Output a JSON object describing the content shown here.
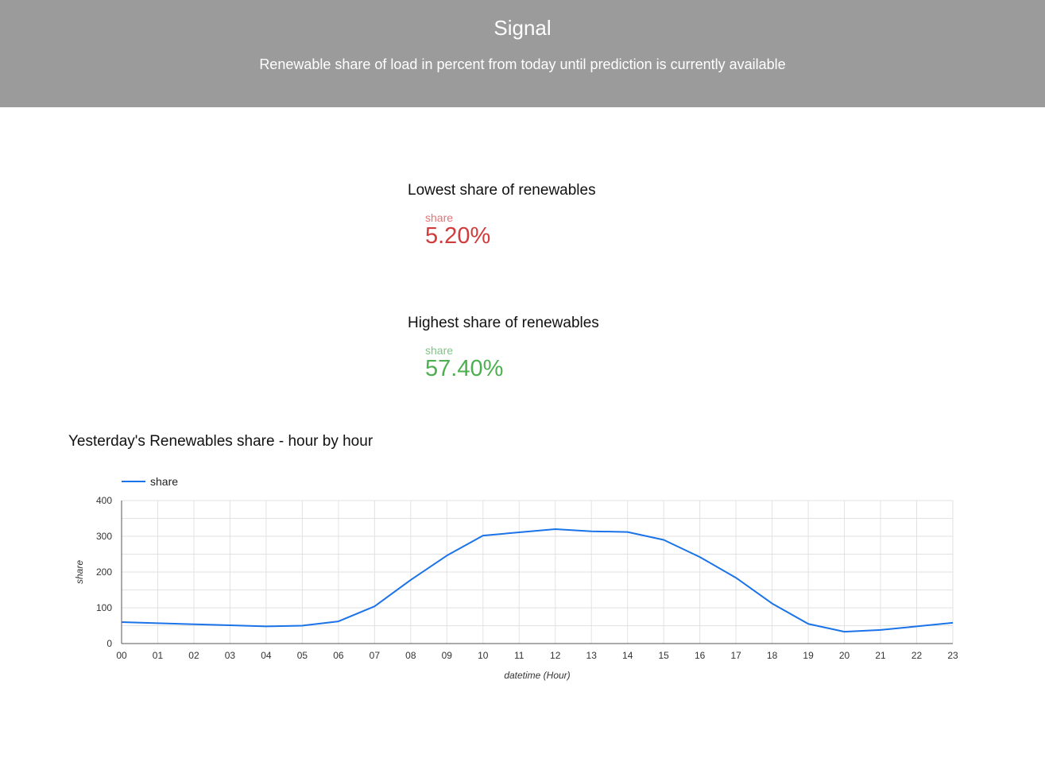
{
  "header": {
    "title": "Signal",
    "subtitle": "Renewable share of load in percent from today until prediction is currently available"
  },
  "lowest": {
    "title": "Lowest share of renewables",
    "label": "share",
    "value": "5.20%"
  },
  "highest": {
    "title": "Highest share of renewables",
    "label": "share",
    "value": "57.40%"
  },
  "chart": {
    "title": "Yesterday's Renewables share - hour by hour"
  },
  "chart_data": {
    "type": "line",
    "x": [
      "00",
      "01",
      "02",
      "03",
      "04",
      "05",
      "06",
      "07",
      "08",
      "09",
      "10",
      "11",
      "12",
      "13",
      "14",
      "15",
      "16",
      "17",
      "18",
      "19",
      "20",
      "21",
      "22",
      "23"
    ],
    "series": [
      {
        "name": "share",
        "values": [
          60,
          57,
          54,
          51,
          48,
          50,
          62,
          104,
          178,
          246,
          302,
          311,
          320,
          314,
          312,
          290,
          242,
          184,
          112,
          55,
          33,
          38,
          48,
          58
        ],
        "color": "#1a73e8"
      }
    ],
    "xlabel": "datetime (Hour)",
    "ylabel": "share",
    "ylim": [
      0,
      400
    ],
    "yticks": [
      0,
      100,
      200,
      300,
      400
    ],
    "grid": true,
    "legend": "top-left"
  }
}
